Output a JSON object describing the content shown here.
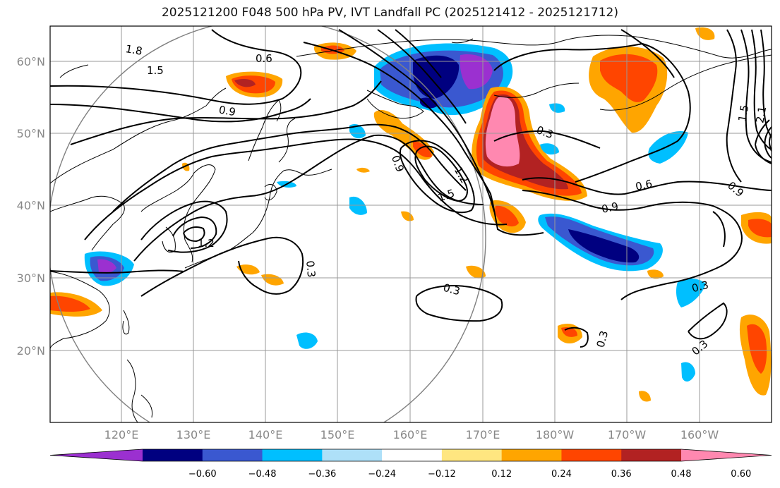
{
  "title": "2025121200 F048 500 hPa PV, IVT Landfall PC (2025121412 - 2025121712)",
  "axes": {
    "lon_ticks": [
      "120°E",
      "130°E",
      "140°E",
      "150°E",
      "160°E",
      "170°E",
      "180°W",
      "170°W",
      "160°W"
    ],
    "lat_ticks": [
      "60°N",
      "50°N",
      "40°N",
      "30°N",
      "20°N"
    ]
  },
  "colorbar": {
    "ticks": [
      "−0.60",
      "−0.48",
      "−0.36",
      "−0.24",
      "−0.12",
      "0.12",
      "0.24",
      "0.36",
      "0.48",
      "0.60"
    ],
    "colors": [
      "#9b30d0",
      "#000080",
      "#3a58d0",
      "#00bfff",
      "#aee0f8",
      "#ffffff",
      "#ffe680",
      "#ffa500",
      "#ff4500",
      "#b22222",
      "#ff88b0"
    ]
  },
  "contour_labels": [
    "1.8",
    "1.5",
    "0.6",
    "0.9",
    "1.2",
    "0.3",
    "0.6",
    "0.9",
    "1.5",
    "1.2",
    "0.9",
    "0.3",
    "0.3",
    "0.3",
    "0.3",
    "0.3",
    "0.9",
    "1.5",
    "2.1"
  ]
}
